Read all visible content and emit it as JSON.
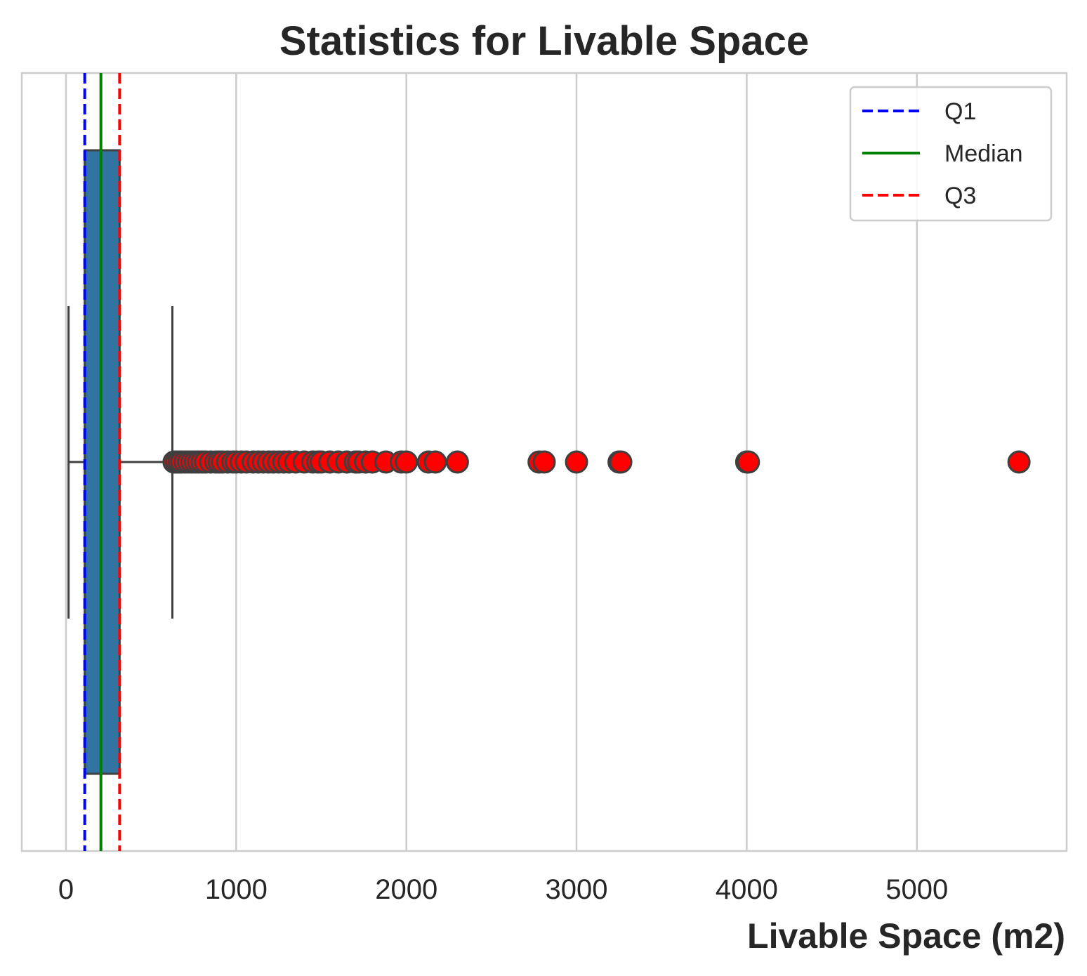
{
  "chart_data": {
    "type": "boxplot",
    "title": "Statistics for Livable Space",
    "xlabel": "Livable Space (m2)",
    "ylabel": "",
    "xlim": [
      -260,
      5880
    ],
    "xticks": [
      0,
      1000,
      2000,
      3000,
      4000,
      5000
    ],
    "xtick_labels": [
      "0",
      "1000",
      "2000",
      "3000",
      "4000",
      "5000"
    ],
    "grid": "vertical",
    "legend_position": "top-right",
    "box": {
      "whisker_low": 15,
      "q1": 110,
      "median": 205,
      "q3": 315,
      "whisker_high": 625,
      "color": "#3274a1"
    },
    "reference_lines": [
      {
        "name": "Q1",
        "value": 110,
        "color": "#0000ff",
        "style": "dashed"
      },
      {
        "name": "Median",
        "value": 205,
        "color": "#008000",
        "style": "solid"
      },
      {
        "name": "Q3",
        "value": 315,
        "color": "#ff0000",
        "style": "dashed"
      }
    ],
    "outliers": [
      635,
      650,
      665,
      680,
      700,
      720,
      740,
      760,
      780,
      800,
      820,
      850,
      880,
      900,
      920,
      950,
      980,
      1000,
      1030,
      1060,
      1100,
      1130,
      1160,
      1190,
      1220,
      1250,
      1280,
      1310,
      1350,
      1400,
      1450,
      1480,
      1500,
      1550,
      1600,
      1650,
      1700,
      1720,
      1760,
      1800,
      1880,
      1970,
      2000,
      2130,
      2170,
      2300,
      2780,
      2810,
      3000,
      3250,
      3260,
      4000,
      4010,
      5600
    ],
    "outlier_color": "#ff0000"
  }
}
